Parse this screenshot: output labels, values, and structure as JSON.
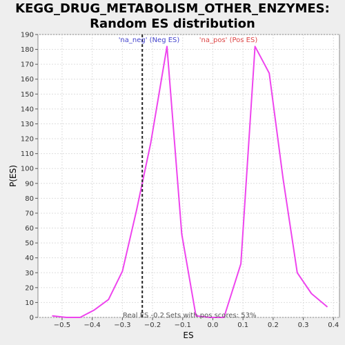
{
  "chart_data": {
    "type": "line",
    "title_line1": "KEGG_DRUG_METABOLISM_OTHER_ENZYMES:",
    "title_line2": "Random ES distribution",
    "xlabel": "ES",
    "ylabel": "P(ES)",
    "xlim": [
      -0.58,
      0.42
    ],
    "ylim": [
      0,
      190
    ],
    "x_ticks": [
      -0.5,
      -0.4,
      -0.3,
      -0.2,
      -0.1,
      0.0,
      0.1,
      0.2,
      0.3,
      0.4
    ],
    "x_tick_labels": [
      "−0.5",
      "−0.4",
      "−0.3",
      "−0.2",
      "−0.1",
      "0.0",
      "0.1",
      "0.2",
      "0.3",
      "0.4"
    ],
    "y_ticks": [
      0,
      10,
      20,
      30,
      40,
      50,
      60,
      70,
      80,
      90,
      100,
      110,
      120,
      130,
      140,
      150,
      160,
      170,
      180,
      190
    ],
    "grid": true,
    "series": [
      {
        "color": "#ee44ee",
        "x": [
          -0.533,
          -0.486,
          -0.44,
          -0.393,
          -0.346,
          -0.3,
          -0.253,
          -0.206,
          -0.152,
          -0.103,
          -0.056,
          -0.01,
          0.037,
          0.093,
          0.14,
          0.187,
          0.233,
          0.28,
          0.327,
          0.38
        ],
        "y": [
          1,
          0,
          0,
          5,
          12,
          31,
          72,
          117,
          182,
          56,
          1,
          0,
          0,
          36,
          182,
          164,
          93,
          30,
          16,
          7
        ]
      }
    ],
    "real_es": -0.234,
    "annotations": {
      "neg_label": "'na_neg' (Neg ES)",
      "pos_label": "'na_pos' (Pos ES)",
      "real_es_label": "Real ES -0.2",
      "pos_scores_label": "Sets with pos scores: 53%"
    },
    "colors": {
      "neg_label": "#4444cc",
      "pos_label": "#dd4444",
      "curve": "#ee44ee",
      "real_es_line": "#222222",
      "plot_bg": "#ffffff",
      "grid": "#dddddd"
    }
  }
}
